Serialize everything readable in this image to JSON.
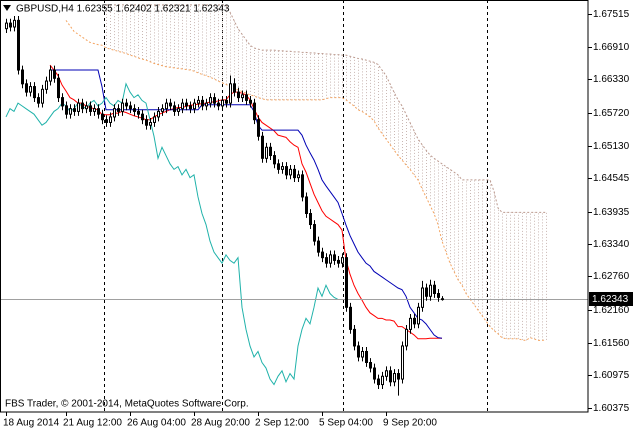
{
  "chart_data": {
    "type": "candlestick",
    "title": "GBPUSD,H4  1.62355 1.62402 1.62321 1.62343",
    "footnote": "FBS Trader, © 2001-2014, MetaQuotes Software Corp.",
    "categories": [
      "18 Aug 2014",
      null,
      null,
      null,
      null,
      null,
      null,
      null,
      null,
      null,
      null,
      null,
      null,
      null,
      null,
      "21 Aug 12:00",
      null,
      null,
      null,
      null,
      null,
      null,
      null,
      null,
      null,
      null,
      null,
      null,
      null,
      null,
      null,
      "26 Aug 04:00",
      null,
      null,
      null,
      null,
      null,
      null,
      null,
      null,
      null,
      null,
      null,
      null,
      null,
      null,
      null,
      "28 Aug 20:00",
      null,
      null,
      null,
      null,
      null,
      null,
      null,
      null,
      null,
      null,
      null,
      null,
      null,
      null,
      null,
      "2 Sep 12:00",
      null,
      null,
      null,
      null,
      null,
      null,
      null,
      null,
      null,
      null,
      null,
      null,
      null,
      null,
      null,
      "5 Sep 04:00",
      null,
      null,
      null,
      null,
      null,
      null,
      null,
      null,
      null,
      null,
      null,
      null,
      null,
      null,
      null,
      "9 Sep 20:00",
      null,
      null,
      null,
      null,
      null,
      null,
      null,
      null,
      null,
      null,
      null,
      null,
      null,
      null
    ],
    "open": [
      1.6725,
      1.6735,
      1.6728,
      1.674,
      1.665,
      1.6625,
      1.661,
      1.662,
      1.66,
      1.659,
      1.6615,
      1.663,
      1.665,
      1.6635,
      1.66,
      1.6585,
      1.657,
      1.658,
      1.6575,
      1.659,
      1.658,
      1.6585,
      1.6575,
      1.658,
      1.657,
      1.656,
      1.6555,
      1.6565,
      1.658,
      1.6575,
      1.659,
      1.6585,
      1.658,
      1.6575,
      1.657,
      1.656,
      1.655,
      1.6555,
      1.6565,
      1.6575,
      1.658,
      1.659,
      1.6585,
      1.6575,
      1.658,
      1.659,
      1.6585,
      1.658,
      1.659,
      1.6595,
      1.6585,
      1.659,
      1.66,
      1.659,
      1.6585,
      1.6595,
      1.659,
      1.6625,
      1.661,
      1.66,
      1.6605,
      1.6595,
      1.659,
      1.656,
      1.653,
      1.649,
      1.651,
      1.6495,
      1.648,
      1.647,
      1.6475,
      1.646,
      1.647,
      1.6455,
      1.646,
      1.642,
      1.639,
      1.637,
      1.634,
      1.632,
      1.631,
      1.63,
      1.6315,
      1.6305,
      1.63,
      1.631,
      1.622,
      1.618,
      1.615,
      1.613,
      1.614,
      1.612,
      1.611,
      1.609,
      1.608,
      1.6095,
      1.6105,
      1.6085,
      1.61,
      1.609,
      1.615,
      1.618,
      1.62,
      1.619,
      1.622,
      1.6255,
      1.624,
      1.626,
      1.6245,
      1.62355
    ],
    "high": [
      1.6743,
      1.6743,
      1.6748,
      1.6748,
      1.6658,
      1.6633,
      1.6628,
      1.6628,
      1.6608,
      1.6623,
      1.6638,
      1.6658,
      1.6658,
      1.6643,
      1.6608,
      1.6593,
      1.6588,
      1.6588,
      1.6598,
      1.6598,
      1.6593,
      1.6593,
      1.6588,
      1.6588,
      1.6578,
      1.6568,
      1.6573,
      1.6588,
      1.6588,
      1.6598,
      1.6598,
      1.6593,
      1.6588,
      1.6583,
      1.6578,
      1.6568,
      1.6563,
      1.6573,
      1.6583,
      1.6588,
      1.6598,
      1.6598,
      1.6593,
      1.6588,
      1.6598,
      1.6598,
      1.6593,
      1.6598,
      1.6603,
      1.6603,
      1.6598,
      1.6608,
      1.6608,
      1.6598,
      1.6603,
      1.6603,
      1.664,
      1.6635,
      1.6618,
      1.6613,
      1.6613,
      1.6603,
      1.6598,
      1.6568,
      1.6538,
      1.6518,
      1.6518,
      1.6503,
      1.6488,
      1.6483,
      1.6483,
      1.6478,
      1.6478,
      1.6468,
      1.6468,
      1.6428,
      1.6398,
      1.6378,
      1.6348,
      1.6328,
      1.6318,
      1.6323,
      1.6323,
      1.6313,
      1.6318,
      1.6318,
      1.6228,
      1.6188,
      1.6158,
      1.6148,
      1.6148,
      1.6128,
      1.6118,
      1.6098,
      1.6103,
      1.6113,
      1.6113,
      1.6108,
      1.6108,
      1.6158,
      1.6188,
      1.6208,
      1.6208,
      1.6228,
      1.6268,
      1.6263,
      1.627,
      1.6268,
      1.6253,
      1.62402
    ],
    "low": [
      1.6717,
      1.672,
      1.672,
      1.6642,
      1.6617,
      1.6602,
      1.6602,
      1.6592,
      1.6582,
      1.6582,
      1.6607,
      1.6622,
      1.6627,
      1.6592,
      1.6577,
      1.6562,
      1.6562,
      1.6567,
      1.6567,
      1.6572,
      1.6572,
      1.6567,
      1.6567,
      1.6562,
      1.6552,
      1.6547,
      1.6547,
      1.6557,
      1.6567,
      1.6567,
      1.6577,
      1.6572,
      1.6567,
      1.6562,
      1.6552,
      1.6542,
      1.6542,
      1.6547,
      1.6557,
      1.6567,
      1.6572,
      1.6577,
      1.6567,
      1.6567,
      1.6572,
      1.6577,
      1.6572,
      1.6572,
      1.6582,
      1.6577,
      1.6577,
      1.6582,
      1.6582,
      1.6577,
      1.6577,
      1.6582,
      1.6582,
      1.6602,
      1.6592,
      1.6592,
      1.6587,
      1.6582,
      1.6552,
      1.6522,
      1.6482,
      1.6482,
      1.6487,
      1.6472,
      1.6462,
      1.6462,
      1.6452,
      1.6452,
      1.6447,
      1.6447,
      1.6412,
      1.6382,
      1.6362,
      1.6332,
      1.6312,
      1.6302,
      1.6292,
      1.6292,
      1.6297,
      1.6292,
      1.6292,
      1.6212,
      1.6172,
      1.6142,
      1.6122,
      1.6122,
      1.6112,
      1.6102,
      1.6082,
      1.6072,
      1.6072,
      1.6087,
      1.6077,
      1.6077,
      1.606,
      1.6082,
      1.6142,
      1.6172,
      1.6182,
      1.6182,
      1.6212,
      1.6232,
      1.6232,
      1.6237,
      1.623,
      1.62321
    ],
    "close": [
      1.6735,
      1.6728,
      1.674,
      1.665,
      1.6625,
      1.661,
      1.662,
      1.66,
      1.659,
      1.6615,
      1.663,
      1.665,
      1.6635,
      1.66,
      1.6585,
      1.657,
      1.658,
      1.6575,
      1.659,
      1.658,
      1.6585,
      1.6575,
      1.658,
      1.657,
      1.656,
      1.6555,
      1.6565,
      1.658,
      1.6575,
      1.659,
      1.6585,
      1.658,
      1.6575,
      1.657,
      1.656,
      1.655,
      1.6555,
      1.6565,
      1.6575,
      1.658,
      1.659,
      1.6585,
      1.6575,
      1.658,
      1.659,
      1.6585,
      1.658,
      1.659,
      1.6595,
      1.6585,
      1.659,
      1.66,
      1.659,
      1.6585,
      1.6595,
      1.659,
      1.6625,
      1.661,
      1.66,
      1.6605,
      1.6595,
      1.659,
      1.656,
      1.653,
      1.649,
      1.651,
      1.6495,
      1.648,
      1.647,
      1.6475,
      1.646,
      1.647,
      1.6455,
      1.646,
      1.642,
      1.639,
      1.637,
      1.634,
      1.632,
      1.631,
      1.63,
      1.6315,
      1.6305,
      1.63,
      1.631,
      1.622,
      1.618,
      1.615,
      1.613,
      1.614,
      1.612,
      1.611,
      1.609,
      1.608,
      1.6095,
      1.6105,
      1.6085,
      1.61,
      1.609,
      1.615,
      1.618,
      1.62,
      1.619,
      1.622,
      1.6255,
      1.624,
      1.626,
      1.6245,
      1.6238,
      1.62343
    ],
    "up_color": "#ffffff",
    "down_color": "#000000",
    "ylim": [
      1.60303,
      1.67769
    ],
    "yticks": [
      1.67515,
      {
        "value": 1.6691,
        "label": "1.66910"
      },
      {
        "value": 1.6633,
        "label": "1.66330"
      },
      {
        "value": 1.6572,
        "label": "1.65720"
      },
      {
        "value": 1.6513,
        "label": "1.65130"
      },
      1.64545,
      1.63935,
      {
        "value": 1.6334,
        "label": "1.63340"
      },
      {
        "value": 1.6276,
        "label": "1.62760"
      },
      {
        "value": 1.6216,
        "label": "1.62160"
      },
      {
        "value": 1.6156,
        "label": "1.61560"
      },
      1.60975,
      1.60375
    ],
    "series": [
      {
        "color": "#ff0000",
        "values": [
          null,
          null,
          null,
          null,
          null,
          null,
          null,
          null,
          null,
          null,
          null,
          1.6659,
          1.665,
          1.664,
          1.6623,
          1.6612,
          1.66,
          1.6596,
          1.659,
          1.659,
          1.6585,
          1.6582,
          1.658,
          1.6578,
          1.6569,
          1.6569,
          1.6569,
          1.6572,
          1.6572,
          1.6575,
          1.6573,
          1.657,
          1.6567,
          1.6565,
          1.6563,
          1.656,
          1.656,
          1.6565,
          1.6569,
          1.6572,
          1.6575,
          1.6578,
          1.658,
          1.6582,
          1.6582,
          1.6584,
          1.6586,
          1.6587,
          1.6588,
          1.6589,
          1.659,
          1.6592,
          1.6592,
          1.6594,
          1.6596,
          1.6596,
          1.6605,
          1.661,
          1.661,
          1.6608,
          1.6605,
          1.6596,
          1.658,
          1.6565,
          1.6555,
          1.655,
          1.6545,
          1.654,
          1.6532,
          1.653,
          1.6528,
          1.652,
          1.6514,
          1.651,
          1.648,
          1.6465,
          1.6445,
          1.6425,
          1.641,
          1.6395,
          1.6385,
          1.638,
          1.6375,
          1.637,
          1.636,
          1.6306,
          1.628,
          1.626,
          1.6245,
          1.6233,
          1.622,
          1.621,
          1.6205,
          1.62,
          1.62,
          1.6197,
          1.6197,
          1.6195,
          1.6185,
          1.6185,
          1.618,
          1.6175,
          1.617,
          1.6163,
          1.6163,
          1.6163,
          1.6164,
          1.6164,
          1.6164,
          1.6164
        ]
      },
      {
        "color": "#0000b4",
        "values": [
          null,
          null,
          null,
          null,
          null,
          null,
          null,
          null,
          null,
          null,
          null,
          1.665,
          1.665,
          1.665,
          1.665,
          1.665,
          1.665,
          1.665,
          1.665,
          1.665,
          1.665,
          1.665,
          1.665,
          1.665,
          1.662,
          1.6578,
          1.6578,
          1.6578,
          1.6578,
          1.6578,
          1.6578,
          1.6578,
          1.6578,
          1.6578,
          1.6578,
          1.6578,
          1.6578,
          1.6578,
          1.6578,
          1.6578,
          1.6578,
          1.6578,
          1.6578,
          1.6578,
          1.6578,
          1.6578,
          1.6578,
          1.6578,
          1.6578,
          1.6587,
          1.6587,
          1.6587,
          1.6587,
          1.6587,
          1.6587,
          1.6587,
          1.6587,
          1.6587,
          1.6587,
          1.6587,
          1.6587,
          1.6587,
          1.6575,
          1.655,
          1.6541,
          1.6541,
          1.6541,
          1.6541,
          1.6541,
          1.6541,
          1.6541,
          1.6541,
          1.6541,
          1.6541,
          1.6532,
          1.6514,
          1.65,
          1.6487,
          1.647,
          1.6451,
          1.644,
          1.643,
          1.642,
          1.641,
          1.639,
          1.6369,
          1.635,
          1.6335,
          1.632,
          1.631,
          1.63,
          1.6295,
          1.6285,
          1.628,
          1.6275,
          1.627,
          1.6265,
          1.626,
          1.6255,
          1.6252,
          1.624,
          1.622,
          1.621,
          1.62,
          1.6197,
          1.619,
          1.618,
          1.617,
          1.6165,
          1.6164
        ]
      },
      {
        "color": "#20b2aa",
        "values": [
          1.6565,
          1.658,
          1.6575,
          1.659,
          1.6585,
          1.658,
          1.6575,
          1.657,
          1.656,
          1.655,
          1.6555,
          1.6565,
          1.6575,
          1.658,
          1.659,
          1.6585,
          1.6575,
          1.658,
          1.659,
          1.6585,
          1.658,
          1.659,
          1.6595,
          1.6585,
          1.659,
          1.66,
          1.659,
          1.6585,
          1.6595,
          1.659,
          1.6625,
          1.661,
          1.66,
          1.6605,
          1.6595,
          1.659,
          1.656,
          1.653,
          1.649,
          1.651,
          1.6495,
          1.648,
          1.647,
          1.6475,
          1.646,
          1.647,
          1.6455,
          1.646,
          1.642,
          1.639,
          1.637,
          1.634,
          1.632,
          1.631,
          1.63,
          1.6315,
          1.6305,
          1.63,
          1.631,
          1.622,
          1.618,
          1.615,
          1.613,
          1.614,
          1.612,
          1.611,
          1.609,
          1.608,
          1.6095,
          1.6105,
          1.6085,
          1.61,
          1.609,
          1.615,
          1.618,
          1.62,
          1.619,
          1.622,
          1.6255,
          1.624,
          1.626,
          1.6245,
          1.6238,
          1.62343,
          null,
          null,
          null,
          null,
          null,
          null,
          null,
          null,
          null,
          null,
          null,
          null,
          null,
          null,
          null,
          null,
          null,
          null,
          null,
          null,
          null,
          null,
          null,
          null,
          null,
          null
        ]
      }
    ],
    "cloud": {
      "color_a": "#f4a460",
      "color_b": "#bc9a8f",
      "hatch_color": "#c9b8b4",
      "a": [
        null,
        null,
        null,
        null,
        null,
        null,
        null,
        null,
        null,
        null,
        null,
        null,
        null,
        null,
        null,
        1.674,
        1.673,
        1.672,
        1.6715,
        1.671,
        1.6705,
        1.67,
        1.6698,
        1.6696,
        1.6695,
        1.669,
        1.6688,
        1.6686,
        1.6684,
        1.6682,
        1.668,
        1.6677,
        1.6675,
        1.6672,
        1.667,
        1.6668,
        1.6665,
        1.6662,
        1.666,
        1.6658,
        1.6656,
        1.6655,
        1.6654,
        1.6653,
        1.6652,
        1.6651,
        1.665,
        1.6648,
        1.6645,
        1.6642,
        1.664,
        1.6637,
        1.6634,
        1.663,
        1.6627,
        1.6624,
        1.662,
        1.6617,
        1.6614,
        1.6611,
        1.6608,
        1.6605,
        1.6603,
        1.66,
        1.6598,
        1.6596,
        1.6596,
        1.6596,
        1.6596,
        1.6596,
        1.6596,
        1.6596,
        1.6596,
        1.6596,
        1.6596,
        1.6596,
        1.6596,
        1.6596,
        1.6596,
        1.6596,
        1.6598,
        1.66,
        1.66,
        1.66,
        1.66,
        1.6596,
        1.659,
        1.6585,
        1.6578,
        1.6575,
        1.657,
        1.6565,
        1.6558,
        1.6545,
        1.6535,
        1.6525,
        1.6515,
        1.6505,
        1.6495,
        1.6487,
        1.6478,
        1.647,
        1.646,
        1.6451,
        1.6435,
        1.642,
        1.6405,
        1.639,
        1.637,
        1.634,
        1.632,
        1.63,
        1.6285,
        1.627,
        1.626,
        1.6245,
        1.6235,
        1.6225,
        1.6215,
        1.6205,
        1.6195,
        1.6185,
        1.6178,
        1.6172,
        1.6165,
        1.6163,
        1.6163,
        1.6163,
        1.6163,
        1.6161,
        1.616,
        1.6165,
        1.6163,
        1.616,
        1.616,
        1.6161
      ],
      "b": [
        null,
        null,
        null,
        null,
        null,
        null,
        null,
        null,
        null,
        null,
        null,
        null,
        null,
        null,
        null,
        null,
        null,
        null,
        null,
        null,
        null,
        null,
        null,
        null,
        null,
        1.6768,
        1.6768,
        1.6768,
        1.6768,
        1.6768,
        1.6768,
        1.6768,
        1.6768,
        1.6768,
        1.6768,
        1.6768,
        1.6768,
        1.6768,
        1.6768,
        1.6768,
        1.6768,
        1.6768,
        1.6768,
        1.6768,
        1.6768,
        1.6768,
        1.6768,
        1.6768,
        1.6768,
        1.6768,
        1.6768,
        1.6768,
        1.6768,
        1.6768,
        1.6768,
        1.6768,
        1.6755,
        1.674,
        1.6725,
        1.6715,
        1.6705,
        1.6695,
        1.669,
        1.6688,
        1.6686,
        1.6686,
        1.6686,
        1.6686,
        1.6685,
        1.6685,
        1.6684,
        1.6684,
        1.6683,
        1.6683,
        1.6682,
        1.6682,
        1.6681,
        1.6681,
        1.668,
        1.668,
        1.6679,
        1.6679,
        1.6678,
        1.6678,
        1.6677,
        1.6677,
        1.6675,
        1.6673,
        1.6671,
        1.667,
        1.6668,
        1.6666,
        1.6664,
        1.666,
        1.665,
        1.664,
        1.6625,
        1.661,
        1.6596,
        1.6585,
        1.657,
        1.6555,
        1.654,
        1.6525,
        1.6515,
        1.6505,
        1.6496,
        1.649,
        1.6485,
        1.648,
        1.6475,
        1.647,
        1.6465,
        1.646,
        1.6451,
        1.6451,
        1.6451,
        1.6451,
        1.6451,
        1.6451,
        1.6451,
        1.6451,
        1.643,
        1.64,
        1.6392,
        1.6392,
        1.6392,
        1.6392,
        1.6392,
        1.6392,
        1.6392,
        1.6392,
        1.6392,
        1.6392,
        1.6392,
        1.6392
      ]
    },
    "last_price_line": true
  }
}
